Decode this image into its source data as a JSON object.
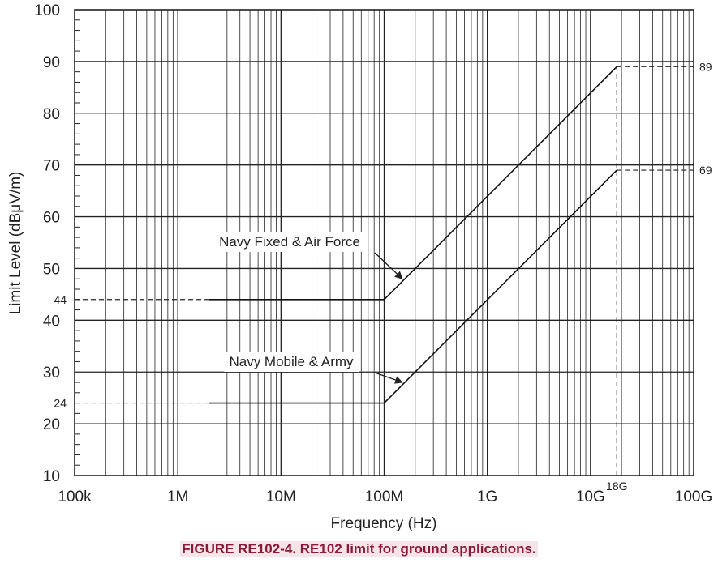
{
  "chart_data": {
    "type": "line",
    "title": "",
    "xlabel": "Frequency (Hz)",
    "ylabel": "Limit Level (dBμV/m)",
    "x_scale": "log",
    "xlim": [
      100000,
      100000000000
    ],
    "ylim": [
      10,
      100
    ],
    "grid": true,
    "x_tick_values": [
      100000,
      1000000,
      10000000,
      100000000,
      1000000000,
      10000000000,
      100000000000
    ],
    "x_tick_labels": [
      "100k",
      "1M",
      "10M",
      "100M",
      "1G",
      "10G",
      "100G"
    ],
    "y_ticks": [
      10,
      20,
      30,
      40,
      50,
      60,
      70,
      80,
      90,
      100
    ],
    "y_tick_labels": [
      "10",
      "20",
      "30",
      "40",
      "50",
      "60",
      "70",
      "80",
      "90",
      "100"
    ],
    "series": [
      {
        "name": "Navy Fixed & Air Force",
        "x": [
          2000000,
          100000000,
          18000000000
        ],
        "y": [
          44,
          44,
          89
        ]
      },
      {
        "name": "Navy Mobile & Army",
        "x": [
          2000000,
          100000000,
          18000000000
        ],
        "y": [
          24,
          24,
          69
        ]
      }
    ],
    "reference_lines": [
      {
        "axis": "y",
        "value": 44,
        "label": "44",
        "side": "left",
        "x_from": 100000,
        "x_to": 2000000
      },
      {
        "axis": "y",
        "value": 24,
        "label": "24",
        "side": "left",
        "x_from": 100000,
        "x_to": 2000000
      },
      {
        "axis": "y",
        "value": 89,
        "label": "89",
        "side": "right",
        "x_from": 18000000000,
        "x_to": 100000000000
      },
      {
        "axis": "y",
        "value": 69,
        "label": "69",
        "side": "right",
        "x_from": 18000000000,
        "x_to": 100000000000
      },
      {
        "axis": "x",
        "value": 18000000000,
        "label": "18G",
        "y_from": 10,
        "y_to": 89
      }
    ],
    "annotations": [
      {
        "text": "Navy Fixed & Air Force",
        "points_to": {
          "x": 150000000,
          "y": 48
        }
      },
      {
        "text": "Navy Mobile & Army",
        "points_to": {
          "x": 150000000,
          "y": 28
        }
      }
    ]
  },
  "caption": "FIGURE RE102-4.  RE102 limit for ground applications."
}
